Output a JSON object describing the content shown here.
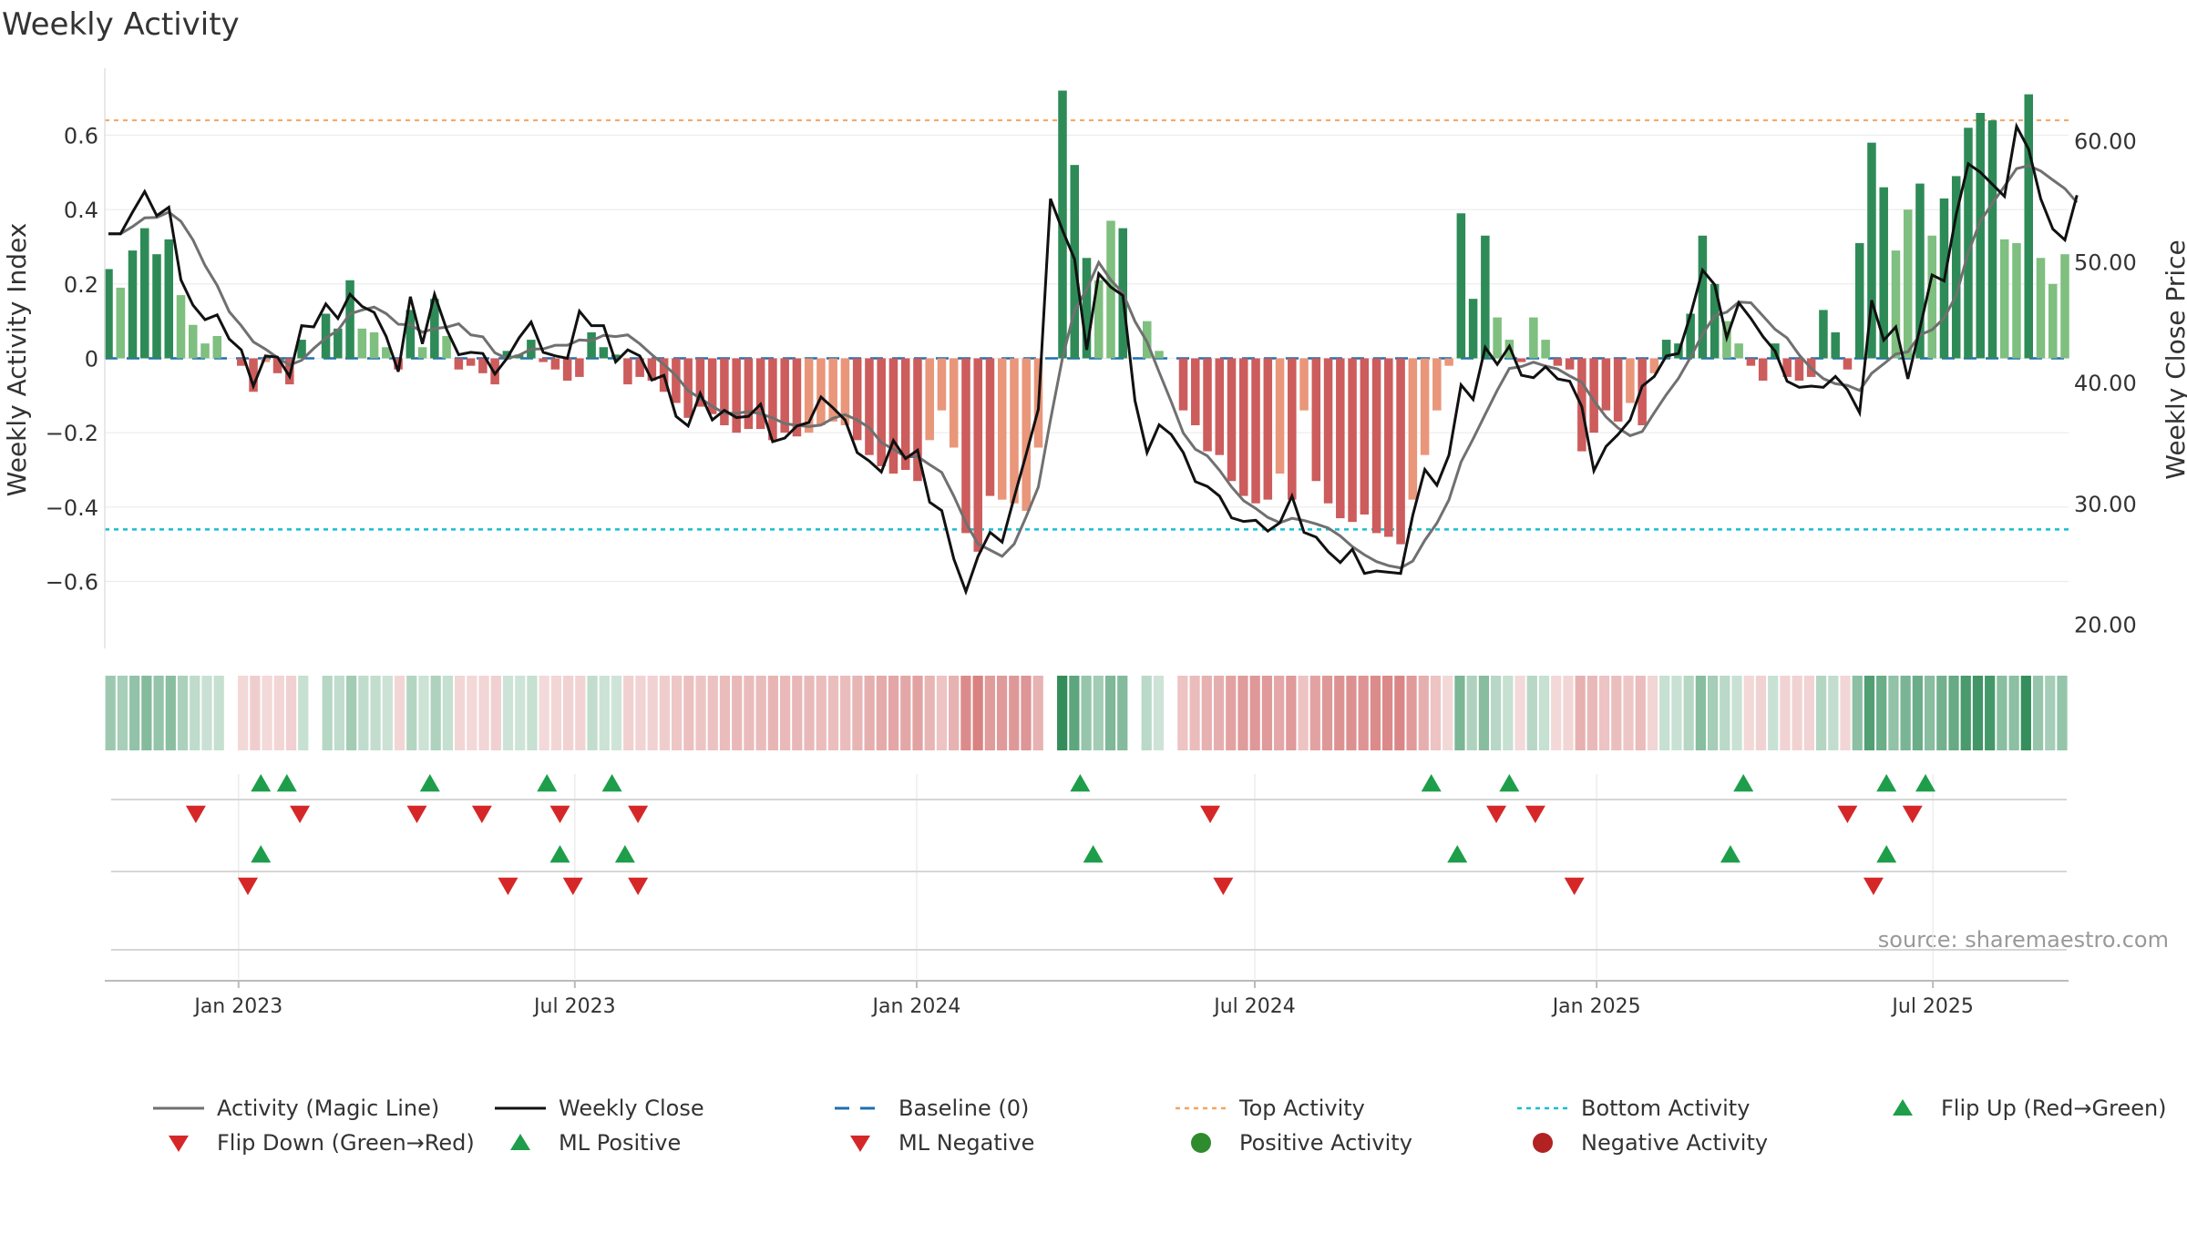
{
  "chart_data": {
    "type": "bar",
    "title": "Weekly Activity",
    "source": "source: sharemaestro.com",
    "x_ticks": [
      "Jan 2023",
      "Jul 2023",
      "Jan 2024",
      "Jul 2024",
      "Jan 2025",
      "Jul 2025"
    ],
    "x_range": [
      "2022-10-21",
      "2025-09-12"
    ],
    "y_left": {
      "label": "Weekly Activity Index",
      "range": [
        -0.78,
        0.78
      ],
      "ticks": [
        0.6,
        0.4,
        0.2,
        0,
        -0.2,
        -0.4,
        -0.6
      ],
      "tick_labels": [
        "0.6",
        "0.4",
        "0.2",
        "0",
        "−0.2",
        "−0.4",
        "−0.6"
      ]
    },
    "y_right": {
      "label": "Weekly Close Price",
      "range": [
        18,
        66
      ],
      "ticks": [
        60,
        50,
        40,
        30,
        20
      ],
      "tick_labels": [
        "60.00",
        "50.00",
        "40.00",
        "30.00",
        "20.00"
      ]
    },
    "reference_lines": {
      "top_activity": 0.64,
      "bottom_activity": -0.46,
      "baseline": 0
    },
    "colors": {
      "pos_dark": "#2e8b57",
      "pos_light": "#7fbf7f",
      "neg_dark": "#cd5c5c",
      "neg_light": "#e9967a",
      "close": "#111111",
      "magic": "#707070",
      "baseline": "#1f6fb0",
      "top": "#f4a460",
      "bottom": "#17becf",
      "up": "#1e9e4a",
      "down": "#d62728"
    },
    "activity": [
      0.24,
      0.19,
      0.29,
      0.35,
      0.28,
      0.32,
      0.17,
      0.09,
      0.04,
      0.06,
      0,
      -0.02,
      -0.09,
      -0.01,
      -0.04,
      -0.07,
      0.05,
      0,
      0.12,
      0.08,
      0.21,
      0.08,
      0.07,
      0.03,
      -0.03,
      0.13,
      0.03,
      0.16,
      0.06,
      -0.03,
      -0.02,
      -0.04,
      -0.07,
      0.02,
      0.01,
      0.05,
      -0.01,
      -0.03,
      -0.06,
      -0.05,
      0.07,
      0.03,
      0.01,
      -0.07,
      -0.05,
      -0.06,
      -0.09,
      -0.12,
      -0.16,
      -0.13,
      -0.15,
      -0.18,
      -0.2,
      -0.19,
      -0.19,
      -0.22,
      -0.2,
      -0.21,
      -0.2,
      -0.18,
      -0.17,
      -0.18,
      -0.22,
      -0.26,
      -0.29,
      -0.31,
      -0.3,
      -0.33,
      -0.22,
      -0.14,
      -0.24,
      -0.47,
      -0.52,
      -0.37,
      -0.38,
      -0.39,
      -0.41,
      -0.24,
      0,
      0.72,
      0.52,
      0.27,
      0.21,
      0.37,
      0.35,
      0,
      0.1,
      0.02,
      0,
      -0.14,
      -0.18,
      -0.25,
      -0.26,
      -0.33,
      -0.37,
      -0.39,
      -0.38,
      -0.31,
      -0.38,
      -0.14,
      -0.33,
      -0.39,
      -0.43,
      -0.44,
      -0.42,
      -0.47,
      -0.48,
      -0.5,
      -0.38,
      -0.26,
      -0.14,
      -0.02,
      0.39,
      0.16,
      0.33,
      0.11,
      0.05,
      -0.01,
      0.11,
      0.05,
      -0.02,
      -0.03,
      -0.25,
      -0.2,
      -0.14,
      -0.17,
      -0.12,
      -0.18,
      -0.04,
      0.05,
      0.04,
      0.12,
      0.33,
      0.2,
      0.1,
      0.04,
      -0.02,
      -0.06,
      0.04,
      -0.05,
      -0.06,
      -0.05,
      0.13,
      0.07,
      -0.03,
      0.31,
      0.58,
      0.46,
      0.29,
      0.4,
      0.47,
      0.33,
      0.43,
      0.49,
      0.62,
      0.66,
      0.64,
      0.32,
      0.31,
      0.71,
      0.27,
      0.2,
      0.28
    ],
    "close": [
      52.3,
      52.3,
      54.1,
      55.8,
      53.8,
      54.5,
      48.5,
      46.4,
      45.2,
      45.6,
      43.6,
      42.7,
      39.7,
      42.2,
      42.1,
      40.5,
      44.7,
      44.6,
      46.5,
      45.3,
      47.3,
      46.3,
      45.8,
      43.8,
      40.9,
      47.1,
      43.2,
      47.3,
      44.4,
      42.3,
      42.5,
      42.4,
      40.7,
      42,
      43.7,
      45,
      42.5,
      42.2,
      42,
      45.9,
      44.7,
      44.7,
      41.7,
      42.7,
      42.2,
      40.2,
      40.6,
      37.2,
      36.4,
      39.1,
      36.9,
      37.7,
      37.1,
      37.2,
      38.2,
      35.1,
      35.4,
      36.4,
      36.7,
      38.8,
      37.9,
      36.9,
      34.2,
      33.5,
      32.6,
      35.2,
      33.7,
      34.4,
      30.1,
      29.4,
      25.4,
      22.7,
      25.6,
      27.6,
      26.8,
      30.5,
      34.1,
      37.8,
      55.2,
      52.6,
      50.2,
      42.7,
      49,
      47.9,
      47.2,
      38.5,
      34.2,
      36.5,
      35.7,
      34.2,
      31.8,
      31.4,
      30.6,
      28.8,
      28.5,
      28.6,
      27.7,
      28.4,
      30.6,
      27.6,
      27.2,
      26,
      25.1,
      26.2,
      24.2,
      24.4,
      24.3,
      24.2,
      29,
      32.8,
      31.5,
      34,
      39.8,
      38.6,
      42.9,
      41.5,
      43,
      40.6,
      40.4,
      41.3,
      40.3,
      40.1,
      38,
      32.7,
      34.7,
      35.7,
      36.9,
      39.7,
      40.5,
      42.2,
      42.4,
      45.6,
      49.3,
      48.1,
      43.7,
      46.6,
      45.3,
      43.8,
      42.6,
      40.1,
      39.6,
      39.7,
      39.6,
      40.5,
      39.4,
      37.5,
      46.8,
      43.5,
      44.6,
      40.3,
      44.5,
      48.9,
      48.4,
      53.9,
      58.1,
      57.4,
      56.4,
      55.4,
      61.2,
      59.3,
      55.2,
      52.7,
      51.8,
      55.5
    ],
    "flips": {
      "row1_up": [
        "2023-01-13",
        "2023-01-27",
        "2023-04-14",
        "2023-06-16",
        "2023-07-21",
        "2024-03-29",
        "2024-10-04",
        "2024-11-15",
        "2025-03-21",
        "2025-06-06",
        "2025-06-27"
      ],
      "row1_down": [
        "2022-12-09",
        "2023-02-03",
        "2023-04-07",
        "2023-05-12",
        "2023-06-23",
        "2023-08-04",
        "2024-06-07",
        "2024-11-08",
        "2024-11-29",
        "2025-05-16",
        "2025-06-20"
      ],
      "row2_up": [
        "2023-01-13",
        "2023-06-23",
        "2023-07-28",
        "2024-04-05",
        "2024-10-18",
        "2025-03-14",
        "2025-06-06"
      ],
      "row2_down": [
        "2023-01-06",
        "2023-05-26",
        "2023-06-30",
        "2023-08-04",
        "2024-06-14",
        "2024-12-20",
        "2025-05-30"
      ]
    },
    "legend": [
      "Activity (Magic Line)",
      "Weekly Close",
      "Baseline (0)",
      "Top Activity",
      "Bottom Activity",
      "Flip Up (Red→Green)",
      "Flip Down (Green→Red)",
      "ML Positive",
      "ML Negative",
      "Positive Activity",
      "Negative Activity"
    ]
  }
}
